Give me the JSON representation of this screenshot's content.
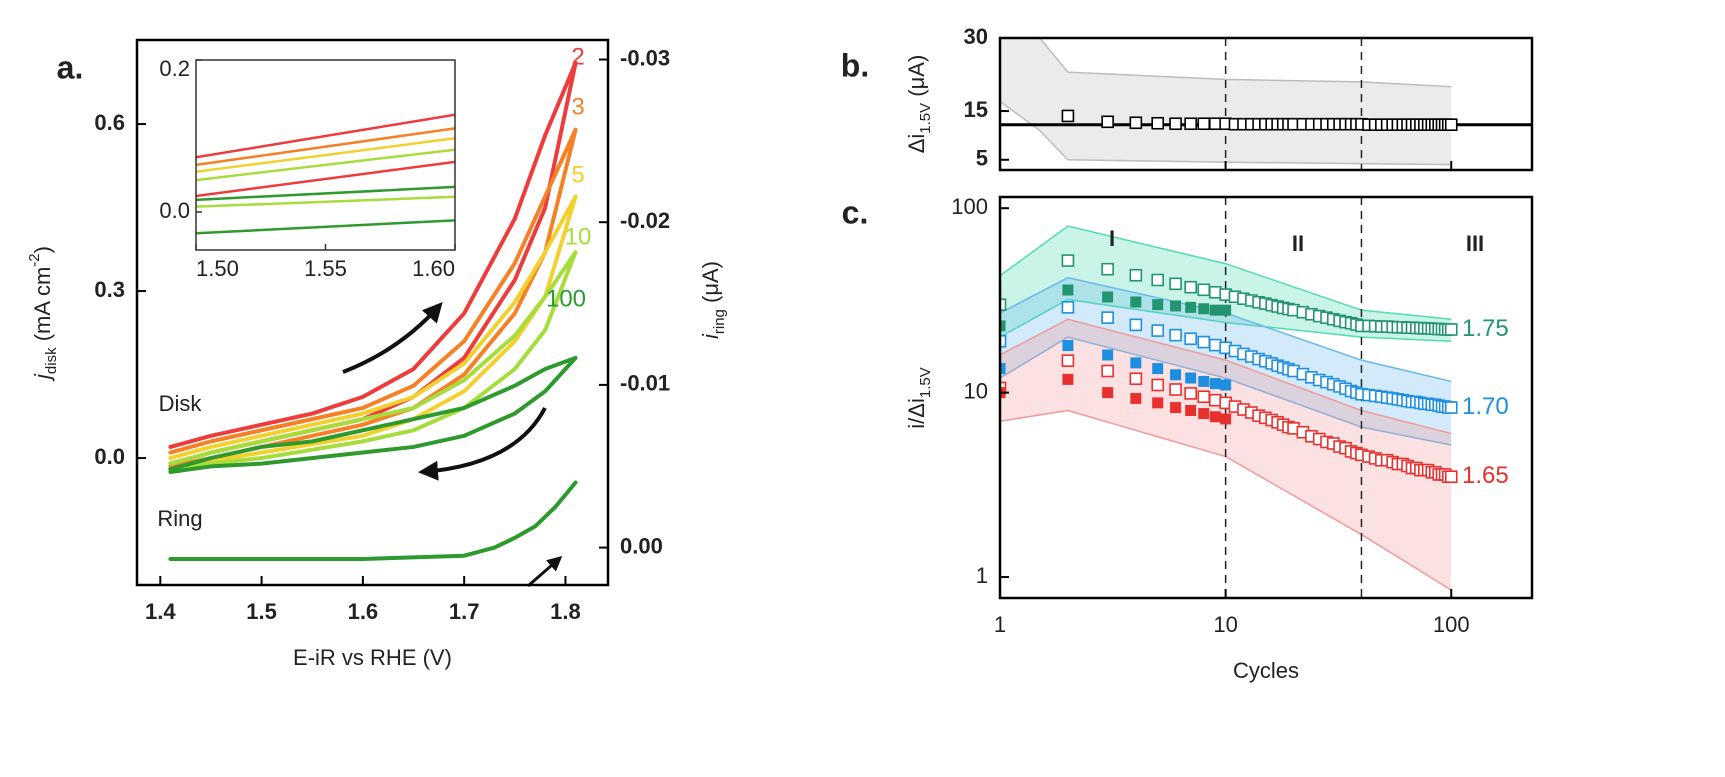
{
  "chart_data": [
    {
      "type": "line",
      "panel_label": "a.",
      "xlabel": "E-iR vs RHE (V)",
      "ylabel": [
        "j",
        "disk",
        " (mA cm",
        "-2",
        ")"
      ],
      "y2label": [
        "i",
        "ring",
        " (μA)"
      ],
      "annotations": [
        "Disk",
        "Ring"
      ],
      "xlim": [
        1.377,
        1.842
      ],
      "ylim": [
        -0.228,
        0.751
      ],
      "y2lim": [
        0.0023,
        -0.0312
      ],
      "xticks": [
        1.4,
        1.5,
        1.6,
        1.7,
        1.8
      ],
      "yticks": [
        {
          "value": 0,
          "label": "0.0"
        },
        0.3,
        0.6
      ],
      "y2ticks": [
        {
          "value": 0,
          "label": "0.00"
        },
        -0.01,
        -0.02,
        -0.03
      ],
      "x": [
        1.41,
        1.45,
        1.5,
        1.55,
        1.6,
        1.65,
        1.7,
        1.75,
        1.78,
        1.81,
        1.78,
        1.75,
        1.7,
        1.65,
        1.6,
        1.5,
        1.45,
        1.41
      ],
      "series": [
        {
          "name": "2",
          "color": "#ee3b3b",
          "values": [
            0.02,
            0.04,
            0.06,
            0.08,
            0.11,
            0.16,
            0.26,
            0.43,
            0.58,
            0.71,
            0.45,
            0.32,
            0.18,
            0.11,
            0.07,
            0.03,
            0.01,
            -0.01
          ]
        },
        {
          "name": "3",
          "color": "#f58025",
          "values": [
            0.01,
            0.03,
            0.05,
            0.07,
            0.09,
            0.13,
            0.21,
            0.35,
            0.47,
            0.59,
            0.37,
            0.26,
            0.15,
            0.09,
            0.06,
            0.02,
            0.0,
            -0.015
          ]
        },
        {
          "name": "5",
          "color": "#f2d02e",
          "values": [
            0.0,
            0.02,
            0.04,
            0.06,
            0.08,
            0.11,
            0.17,
            0.28,
            0.37,
            0.47,
            0.29,
            0.21,
            0.12,
            0.07,
            0.04,
            0.01,
            -0.005,
            -0.02
          ]
        },
        {
          "name": "10",
          "color": "#a6dc3c",
          "values": [
            -0.01,
            0.01,
            0.03,
            0.05,
            0.07,
            0.09,
            0.14,
            0.22,
            0.29,
            0.37,
            0.23,
            0.16,
            0.09,
            0.05,
            0.03,
            0.0,
            -0.01,
            -0.02
          ]
        },
        {
          "name": "100",
          "color": "#2e9a2e",
          "values": [
            -0.02,
            0.0,
            0.02,
            0.03,
            0.05,
            0.07,
            0.09,
            0.13,
            0.16,
            0.18,
            0.12,
            0.08,
            0.04,
            0.02,
            0.01,
            -0.01,
            -0.015,
            -0.025
          ]
        },
        {
          "color": "#2e9a2e",
          "axis": "y2",
          "x": [
            1.41,
            1.5,
            1.6,
            1.7,
            1.73,
            1.75,
            1.77,
            1.79,
            1.81
          ],
          "values": [
            0.0007,
            0.0007,
            0.0007,
            0.0005,
            0.0,
            -0.0006,
            -0.0013,
            -0.0025,
            -0.004
          ]
        }
      ],
      "inset": {
        "xlim": [
          1.5,
          1.6
        ],
        "ylim": [
          -0.05,
          0.2
        ],
        "xticks": [
          {
            "value": 1.5,
            "label": "1.50"
          },
          1.55,
          {
            "value": 1.6,
            "label": "1.60"
          }
        ],
        "yticks": [
          {
            "value": 0,
            "label": "0.0"
          },
          0.2
        ],
        "x": [
          1.5,
          1.6
        ],
        "series": [
          {
            "color": "#ee3b3b",
            "values": [
              0.072,
              0.128
            ]
          },
          {
            "color": "#f58025",
            "values": [
              0.062,
              0.11
            ]
          },
          {
            "color": "#f2d02e",
            "values": [
              0.053,
              0.097
            ]
          },
          {
            "color": "#a6dc3c",
            "values": [
              0.042,
              0.082
            ]
          },
          {
            "color": "#ee3b3b",
            "values": [
              0.021,
              0.066
            ]
          },
          {
            "color": "#2e9a2e",
            "values": [
              0.016,
              0.033
            ]
          },
          {
            "color": "#a6dc3c",
            "values": [
              0.007,
              0.02
            ]
          },
          {
            "color": "#2e9a2e",
            "values": [
              -0.028,
              -0.011
            ]
          }
        ]
      }
    },
    {
      "type": "scatter",
      "panel_label": "b.",
      "ylabel": [
        "Δi",
        "1.5V",
        " (μA)"
      ],
      "xscale": "log",
      "xlim": [
        1,
        228
      ],
      "ylim": [
        2.9,
        30
      ],
      "yticks": [
        5,
        15,
        30
      ],
      "hline": 12.2,
      "vlines": [
        10,
        40
      ],
      "bands": [
        {
          "color": "#bdbdbd",
          "x": [
            1,
            1.5,
            2,
            10,
            40,
            100
          ],
          "upper": [
            35,
            30,
            23,
            21.5,
            21,
            20
          ],
          "lower": [
            17,
            11,
            5,
            4.5,
            4.2,
            4
          ]
        }
      ],
      "series": [
        {
          "color": "#000000",
          "marker": "open",
          "x": [
            2,
            3,
            4,
            5,
            6,
            7,
            8,
            9,
            10,
            11,
            12,
            13,
            14,
            15,
            16,
            17,
            18,
            19,
            20,
            22,
            24,
            26,
            28,
            30,
            32,
            34,
            36,
            38,
            40,
            43,
            46,
            49,
            52,
            55,
            58,
            61,
            64,
            67,
            70,
            73,
            76,
            79,
            82,
            85,
            88,
            91,
            94,
            97,
            100
          ],
          "values": [
            14.0,
            12.8,
            12.6,
            12.5,
            12.4,
            12.4,
            12.4,
            12.4,
            12.4,
            12.3,
            12.3,
            12.3,
            12.3,
            12.3,
            12.3,
            12.3,
            12.3,
            12.3,
            12.3,
            12.3,
            12.3,
            12.3,
            12.3,
            12.3,
            12.3,
            12.3,
            12.3,
            12.3,
            12.3,
            12.2,
            12.2,
            12.2,
            12.2,
            12.2,
            12.2,
            12.2,
            12.2,
            12.2,
            12.2,
            12.2,
            12.2,
            12.2,
            12.2,
            12.2,
            12.2,
            12.2,
            12.2,
            12.2,
            12.2
          ]
        }
      ]
    },
    {
      "type": "scatter",
      "panel_label": "c.",
      "xlabel": "Cycles",
      "ylabel": [
        "i/Δi",
        "1.5V"
      ],
      "annotations": [
        "I",
        "II",
        "III"
      ],
      "xscale": "log",
      "yscale": "log",
      "xlim": [
        1,
        228
      ],
      "ylim": [
        0.77,
        115
      ],
      "xticks": [
        1,
        10,
        100
      ],
      "yticks": [
        1,
        10,
        100
      ],
      "vlines": [
        10,
        40
      ],
      "bands": [
        {
          "color": "#4fdcb0",
          "x": [
            1,
            2,
            10,
            40,
            100
          ],
          "upper": [
            43,
            80,
            50,
            28,
            25
          ],
          "lower": [
            20,
            32,
            24,
            20,
            19
          ]
        },
        {
          "color": "#6ab8ec",
          "x": [
            1,
            2,
            10,
            40,
            100
          ],
          "upper": [
            27,
            42,
            27,
            15,
            11.5
          ],
          "lower": [
            12,
            20,
            12,
            6.5,
            5.2
          ]
        },
        {
          "color": "#f29a9a",
          "x": [
            1,
            2,
            10,
            40,
            100
          ],
          "upper": [
            16,
            25,
            15,
            8,
            6
          ],
          "lower": [
            7,
            8,
            4.5,
            1.7,
            0.85
          ]
        }
      ],
      "series": [
        {
          "name": "1.75",
          "color": "#22946f",
          "marker": "open",
          "x": [
            1,
            2,
            3,
            4,
            5,
            6,
            7,
            8,
            9,
            10,
            11,
            12,
            13,
            14,
            15,
            16,
            17,
            18,
            19,
            20,
            22,
            24,
            26,
            28,
            30,
            32,
            34,
            36,
            38,
            40,
            43,
            46,
            49,
            52,
            55,
            58,
            61,
            64,
            67,
            70,
            73,
            76,
            79,
            82,
            85,
            88,
            91,
            94,
            97,
            100
          ],
          "values": [
            30,
            52,
            46.7,
            43.3,
            40.8,
            38.9,
            37.3,
            36.1,
            35.0,
            34,
            33.1,
            32.3,
            31.6,
            30.9,
            30.4,
            29.8,
            29.3,
            28.8,
            28.4,
            28.0,
            27.3,
            26.6,
            26.0,
            25.5,
            25.0,
            24.5,
            24.1,
            23.8,
            23.4,
            23.0,
            23.0,
            22.9,
            22.8,
            22.8,
            22.7,
            22.6,
            22.6,
            22.5,
            22.5,
            22.4,
            22.4,
            22.3,
            22.3,
            22.2,
            22.2,
            22.1,
            22.1,
            22.0,
            22.0,
            22.0
          ]
        },
        {
          "name": "1.70",
          "color": "#1e8fe0",
          "marker": "open",
          "x": [
            1,
            2,
            3,
            4,
            5,
            6,
            7,
            8,
            9,
            10,
            11,
            12,
            13,
            14,
            15,
            16,
            17,
            18,
            19,
            20,
            22,
            24,
            26,
            28,
            30,
            32,
            34,
            36,
            38,
            40,
            43,
            46,
            49,
            52,
            55,
            58,
            61,
            64,
            67,
            70,
            73,
            76,
            79,
            82,
            85,
            88,
            91,
            94,
            97,
            100
          ],
          "values": [
            19,
            29,
            25.5,
            23.3,
            21.7,
            20.5,
            19.6,
            18.8,
            18.1,
            17.5,
            16.8,
            16.2,
            15.7,
            15.2,
            14.8,
            14.4,
            14.0,
            13.7,
            13.4,
            13.1,
            12.6,
            12.1,
            11.7,
            11.4,
            11.1,
            10.8,
            10.5,
            10.2,
            10.0,
            9.8,
            9.7,
            9.6,
            9.5,
            9.4,
            9.3,
            9.2,
            9.1,
            9.0,
            8.9,
            8.9,
            8.8,
            8.7,
            8.7,
            8.6,
            8.6,
            8.5,
            8.4,
            8.4,
            8.3,
            8.3
          ]
        },
        {
          "name": "1.65",
          "color": "#e8302e",
          "marker": "open",
          "x": [
            1,
            2,
            3,
            4,
            5,
            6,
            7,
            8,
            9,
            10,
            11,
            12,
            13,
            14,
            15,
            16,
            17,
            18,
            19,
            20,
            22,
            24,
            26,
            28,
            30,
            32,
            34,
            36,
            38,
            40,
            43,
            46,
            49,
            52,
            55,
            58,
            61,
            64,
            67,
            70,
            73,
            76,
            79,
            82,
            85,
            88,
            91,
            94,
            97,
            100
          ],
          "values": [
            10.6,
            14.9,
            13.1,
            11.9,
            11.0,
            10.4,
            9.9,
            9.5,
            9.1,
            8.8,
            8.4,
            8.1,
            7.8,
            7.5,
            7.3,
            7.1,
            6.9,
            6.7,
            6.5,
            6.4,
            6.1,
            5.8,
            5.6,
            5.4,
            5.3,
            5.1,
            5.0,
            4.8,
            4.7,
            4.6,
            4.5,
            4.4,
            4.3,
            4.3,
            4.2,
            4.1,
            4.1,
            4.0,
            3.9,
            3.9,
            3.8,
            3.8,
            3.8,
            3.7,
            3.7,
            3.6,
            3.6,
            3.6,
            3.5,
            3.5
          ]
        },
        {
          "color": "#22946f",
          "marker": "filled",
          "x": [
            1,
            2,
            3,
            4,
            5,
            6,
            7,
            8,
            9,
            10
          ],
          "values": [
            23,
            36,
            33,
            31,
            30,
            29.5,
            29,
            28.5,
            28,
            28
          ]
        },
        {
          "color": "#1e8fe0",
          "marker": "filled",
          "x": [
            1,
            2,
            3,
            4,
            5,
            6,
            7,
            8,
            9,
            10
          ],
          "values": [
            13.5,
            18,
            16,
            14.5,
            13.5,
            12.5,
            12,
            11.5,
            11.2,
            11
          ]
        },
        {
          "color": "#e8302e",
          "marker": "filled",
          "x": [
            1,
            2,
            3,
            4,
            5,
            6,
            7,
            8,
            9,
            10
          ],
          "values": [
            10,
            11.8,
            10,
            9.3,
            8.8,
            8.3,
            8,
            7.7,
            7.4,
            7.2
          ]
        }
      ]
    }
  ]
}
